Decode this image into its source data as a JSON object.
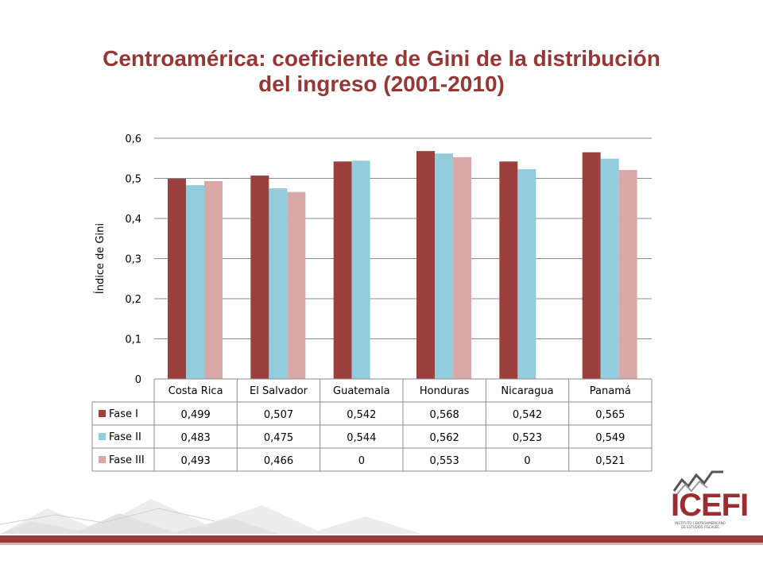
{
  "slide": {
    "title_line1": "Centroamérica: coeficiente de Gini de la distribución",
    "title_line2": "del ingreso (2001-2010)"
  },
  "colors": {
    "title": "#953735",
    "fase1": "#9b403d",
    "fase2": "#93cddd",
    "fase3": "#d9a9a8",
    "gridline": "#8c8c8c",
    "footer_band": "#9b3a38"
  },
  "chart_data": {
    "type": "bar",
    "title": "",
    "xlabel": "",
    "ylabel": "Índice de Gini",
    "ylim": [
      0,
      0.6
    ],
    "yticks": [
      0,
      0.1,
      0.2,
      0.3,
      0.4,
      0.5,
      0.6
    ],
    "ytick_labels": [
      "0",
      "0,1",
      "0,2",
      "0,3",
      "0,4",
      "0,5",
      "0,6"
    ],
    "grid": true,
    "legend": "data-table",
    "categories": [
      "Costa Rica",
      "El Salvador",
      "Guatemala",
      "Honduras",
      "Nicaragua",
      "Panamá"
    ],
    "series": [
      {
        "name": "Fase I",
        "values": [
          0.499,
          0.507,
          0.542,
          0.568,
          0.542,
          0.565
        ],
        "labels": [
          "0,499",
          "0,507",
          "0,542",
          "0,568",
          "0,542",
          "0,565"
        ]
      },
      {
        "name": "Fase II",
        "values": [
          0.483,
          0.475,
          0.544,
          0.562,
          0.523,
          0.549
        ],
        "labels": [
          "0,483",
          "0,475",
          "0,544",
          "0,562",
          "0,523",
          "0,549"
        ]
      },
      {
        "name": "Fase III",
        "values": [
          0.493,
          0.466,
          0,
          0.553,
          0,
          0.521
        ],
        "labels": [
          "0,493",
          "0,466",
          "0",
          "0,553",
          "0",
          "0,521"
        ]
      }
    ]
  },
  "logo": {
    "name": "ICEFI",
    "subtitle_line1": "INSTITUTO CENTROAMERICANO",
    "subtitle_line2": "DE ESTUDIOS FISCALES"
  }
}
